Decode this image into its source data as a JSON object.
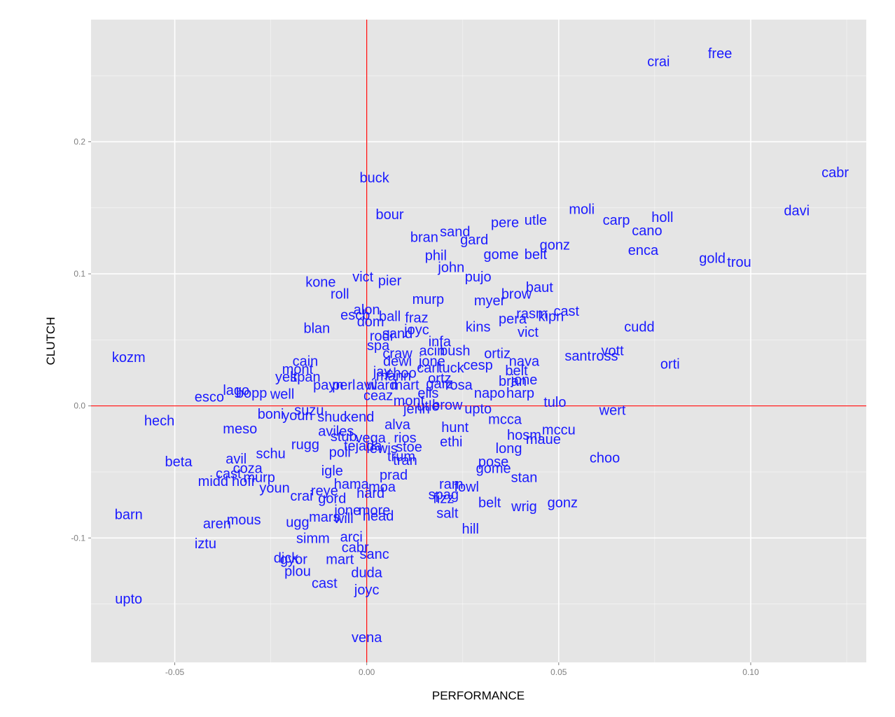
{
  "chart_data": {
    "type": "scatter",
    "xlabel": "PERFORMANCE",
    "ylabel": "CLUTCH",
    "xlim": [
      -0.0718,
      0.1301
    ],
    "ylim": [
      -0.1942,
      0.2925
    ],
    "x_ticks": [
      -0.05,
      0.0,
      0.05,
      0.1
    ],
    "x_tick_labels": [
      "-0.05",
      "0.00",
      "0.05",
      "0.10"
    ],
    "y_ticks": [
      -0.1,
      0.0,
      0.1,
      0.2
    ],
    "y_tick_labels": [
      "-0.1",
      "0.0",
      "0.1",
      "0.2"
    ],
    "grid": true,
    "reference_lines": {
      "x": 0.0,
      "y": 0.0,
      "color": "#ff0000"
    },
    "colors": {
      "panel_background": "#e5e5e5",
      "grid": "#ffffff",
      "label_text": "#1a1aff",
      "tick_text": "#7f7f7f"
    },
    "points": [
      {
        "label": "free",
        "x": 0.092,
        "y": 0.267
      },
      {
        "label": "crai",
        "x": 0.076,
        "y": 0.261
      },
      {
        "label": "cabr",
        "x": 0.122,
        "y": 0.177
      },
      {
        "label": "davi",
        "x": 0.112,
        "y": 0.148
      },
      {
        "label": "buck",
        "x": 0.002,
        "y": 0.173
      },
      {
        "label": "moli",
        "x": 0.056,
        "y": 0.149
      },
      {
        "label": "holl",
        "x": 0.077,
        "y": 0.143
      },
      {
        "label": "carp",
        "x": 0.065,
        "y": 0.141
      },
      {
        "label": "cano",
        "x": 0.073,
        "y": 0.133
      },
      {
        "label": "bour",
        "x": 0.006,
        "y": 0.145
      },
      {
        "label": "utle",
        "x": 0.044,
        "y": 0.141
      },
      {
        "label": "pere",
        "x": 0.036,
        "y": 0.139
      },
      {
        "label": "sand",
        "x": 0.023,
        "y": 0.132
      },
      {
        "label": "gard",
        "x": 0.028,
        "y": 0.126
      },
      {
        "label": "bran",
        "x": 0.015,
        "y": 0.128
      },
      {
        "label": "gonz",
        "x": 0.049,
        "y": 0.122
      },
      {
        "label": "enca",
        "x": 0.072,
        "y": 0.118
      },
      {
        "label": "gome",
        "x": 0.035,
        "y": 0.115
      },
      {
        "label": "belt",
        "x": 0.044,
        "y": 0.115
      },
      {
        "label": "gold",
        "x": 0.09,
        "y": 0.112
      },
      {
        "label": "trou",
        "x": 0.097,
        "y": 0.109
      },
      {
        "label": "phil",
        "x": 0.018,
        "y": 0.114
      },
      {
        "label": "john",
        "x": 0.022,
        "y": 0.105
      },
      {
        "label": "pujo",
        "x": 0.029,
        "y": 0.098
      },
      {
        "label": "vict",
        "x": -0.001,
        "y": 0.098
      },
      {
        "label": "pier",
        "x": 0.006,
        "y": 0.095
      },
      {
        "label": "kone",
        "x": -0.012,
        "y": 0.094
      },
      {
        "label": "baut",
        "x": 0.045,
        "y": 0.09
      },
      {
        "label": "roll",
        "x": -0.007,
        "y": 0.085
      },
      {
        "label": "brow",
        "x": 0.039,
        "y": 0.085
      },
      {
        "label": "murp",
        "x": 0.016,
        "y": 0.081
      },
      {
        "label": "myer",
        "x": 0.032,
        "y": 0.08
      },
      {
        "label": "alon",
        "x": 0.0,
        "y": 0.073
      },
      {
        "label": "escb",
        "x": -0.003,
        "y": 0.069
      },
      {
        "label": "ball",
        "x": 0.006,
        "y": 0.068
      },
      {
        "label": "fraz",
        "x": 0.013,
        "y": 0.067
      },
      {
        "label": "dom",
        "x": 0.001,
        "y": 0.064
      },
      {
        "label": "rasm",
        "x": 0.043,
        "y": 0.07
      },
      {
        "label": "kipn",
        "x": 0.048,
        "y": 0.068
      },
      {
        "label": "cast",
        "x": 0.052,
        "y": 0.072
      },
      {
        "label": "pera",
        "x": 0.038,
        "y": 0.066
      },
      {
        "label": "blan",
        "x": -0.013,
        "y": 0.059
      },
      {
        "label": "kins",
        "x": 0.029,
        "y": 0.06
      },
      {
        "label": "cudd",
        "x": 0.071,
        "y": 0.06
      },
      {
        "label": "vict",
        "x": 0.042,
        "y": 0.056
      },
      {
        "label": "joyc",
        "x": 0.013,
        "y": 0.058
      },
      {
        "label": "rodr",
        "x": 0.004,
        "y": 0.053
      },
      {
        "label": "sand",
        "x": 0.008,
        "y": 0.055
      },
      {
        "label": "spa",
        "x": 0.003,
        "y": 0.046
      },
      {
        "label": "infa",
        "x": 0.019,
        "y": 0.049
      },
      {
        "label": "craw",
        "x": 0.008,
        "y": 0.04
      },
      {
        "label": "acin",
        "x": 0.017,
        "y": 0.042
      },
      {
        "label": "bush",
        "x": 0.023,
        "y": 0.042
      },
      {
        "label": "ortiz",
        "x": 0.034,
        "y": 0.04
      },
      {
        "label": "kozm",
        "x": -0.062,
        "y": 0.037
      },
      {
        "label": "cain",
        "x": -0.016,
        "y": 0.034
      },
      {
        "label": "dewi",
        "x": 0.008,
        "y": 0.034
      },
      {
        "label": "jone",
        "x": 0.017,
        "y": 0.034
      },
      {
        "label": "orti",
        "x": 0.079,
        "y": 0.032
      },
      {
        "label": "sant",
        "x": 0.055,
        "y": 0.038
      },
      {
        "label": "vott",
        "x": 0.064,
        "y": 0.042
      },
      {
        "label": "ross",
        "x": 0.062,
        "y": 0.038
      },
      {
        "label": "nava",
        "x": 0.041,
        "y": 0.034
      },
      {
        "label": "cesp",
        "x": 0.029,
        "y": 0.031
      },
      {
        "label": "carl",
        "x": 0.016,
        "y": 0.029
      },
      {
        "label": "tuck",
        "x": 0.022,
        "y": 0.029
      },
      {
        "label": "mont",
        "x": -0.018,
        "y": 0.028
      },
      {
        "label": "jay",
        "x": 0.004,
        "y": 0.026
      },
      {
        "label": "choo",
        "x": 0.009,
        "y": 0.025
      },
      {
        "label": "belt",
        "x": 0.039,
        "y": 0.027
      },
      {
        "label": "yelt",
        "x": -0.021,
        "y": 0.022
      },
      {
        "label": "span",
        "x": -0.016,
        "y": 0.022
      },
      {
        "label": "mann",
        "x": 0.007,
        "y": 0.023
      },
      {
        "label": "ortz",
        "x": 0.019,
        "y": 0.021
      },
      {
        "label": "bran",
        "x": 0.038,
        "y": 0.019
      },
      {
        "label": "jone",
        "x": 0.041,
        "y": 0.02
      },
      {
        "label": "payn",
        "x": -0.01,
        "y": 0.016
      },
      {
        "label": "perl",
        "x": -0.006,
        "y": 0.016
      },
      {
        "label": "avil",
        "x": 0.0,
        "y": 0.016
      },
      {
        "label": "ward",
        "x": 0.004,
        "y": 0.016
      },
      {
        "label": "mart",
        "x": 0.01,
        "y": 0.016
      },
      {
        "label": "garz",
        "x": 0.019,
        "y": 0.017
      },
      {
        "label": "rosa",
        "x": 0.024,
        "y": 0.016
      },
      {
        "label": "lago",
        "x": -0.034,
        "y": 0.012
      },
      {
        "label": "bopp",
        "x": -0.03,
        "y": 0.01
      },
      {
        "label": "well",
        "x": -0.022,
        "y": 0.009
      },
      {
        "label": "esco",
        "x": -0.041,
        "y": 0.007
      },
      {
        "label": "ceaz",
        "x": 0.003,
        "y": 0.008
      },
      {
        "label": "ells",
        "x": 0.016,
        "y": 0.01
      },
      {
        "label": "napo",
        "x": 0.032,
        "y": 0.01
      },
      {
        "label": "harp",
        "x": 0.04,
        "y": 0.01
      },
      {
        "label": "tulo",
        "x": 0.049,
        "y": 0.003
      },
      {
        "label": "mont",
        "x": 0.011,
        "y": 0.004
      },
      {
        "label": "jenn",
        "x": 0.013,
        "y": -0.002
      },
      {
        "label": "utle",
        "x": 0.016,
        "y": 0.0
      },
      {
        "label": "brow",
        "x": 0.021,
        "y": 0.001
      },
      {
        "label": "upto",
        "x": 0.029,
        "y": -0.002
      },
      {
        "label": "wert",
        "x": 0.064,
        "y": -0.003
      },
      {
        "label": "suzu",
        "x": -0.015,
        "y": -0.003
      },
      {
        "label": "boni",
        "x": -0.025,
        "y": -0.006
      },
      {
        "label": "youn",
        "x": -0.018,
        "y": -0.007
      },
      {
        "label": "shuc",
        "x": -0.009,
        "y": -0.008
      },
      {
        "label": "kend",
        "x": -0.002,
        "y": -0.008
      },
      {
        "label": "hech",
        "x": -0.054,
        "y": -0.011
      },
      {
        "label": "mcca",
        "x": 0.036,
        "y": -0.01
      },
      {
        "label": "alva",
        "x": 0.008,
        "y": -0.014
      },
      {
        "label": "hunt",
        "x": 0.023,
        "y": -0.016
      },
      {
        "label": "meso",
        "x": -0.033,
        "y": -0.017
      },
      {
        "label": "aviles",
        "x": -0.008,
        "y": -0.019
      },
      {
        "label": "mccu",
        "x": 0.05,
        "y": -0.018
      },
      {
        "label": "hosm",
        "x": 0.041,
        "y": -0.022
      },
      {
        "label": "maue",
        "x": 0.046,
        "y": -0.025
      },
      {
        "label": "stub",
        "x": -0.006,
        "y": -0.023
      },
      {
        "label": "vega",
        "x": 0.001,
        "y": -0.024
      },
      {
        "label": "rios",
        "x": 0.01,
        "y": -0.024
      },
      {
        "label": "ethi",
        "x": 0.022,
        "y": -0.027
      },
      {
        "label": "rugg",
        "x": -0.016,
        "y": -0.029
      },
      {
        "label": "tejada",
        "x": -0.001,
        "y": -0.03
      },
      {
        "label": "lewis",
        "x": 0.004,
        "y": -0.032
      },
      {
        "label": "stoe",
        "x": 0.011,
        "y": -0.031
      },
      {
        "label": "long",
        "x": 0.037,
        "y": -0.032
      },
      {
        "label": "poll",
        "x": -0.007,
        "y": -0.035
      },
      {
        "label": "trum",
        "x": 0.009,
        "y": -0.038
      },
      {
        "label": "choo",
        "x": 0.062,
        "y": -0.039
      },
      {
        "label": "schu",
        "x": -0.025,
        "y": -0.036
      },
      {
        "label": "beta",
        "x": -0.049,
        "y": -0.042
      },
      {
        "label": "avil",
        "x": -0.034,
        "y": -0.04
      },
      {
        "label": "tran",
        "x": 0.01,
        "y": -0.041
      },
      {
        "label": "pose",
        "x": 0.033,
        "y": -0.042
      },
      {
        "label": "gome",
        "x": 0.033,
        "y": -0.047
      },
      {
        "label": "coza",
        "x": -0.031,
        "y": -0.047
      },
      {
        "label": "igle",
        "x": -0.009,
        "y": -0.049
      },
      {
        "label": "prad",
        "x": 0.007,
        "y": -0.052
      },
      {
        "label": "stan",
        "x": 0.041,
        "y": -0.054
      },
      {
        "label": "cast",
        "x": -0.036,
        "y": -0.051
      },
      {
        "label": "murp",
        "x": -0.028,
        "y": -0.054
      },
      {
        "label": "midd",
        "x": -0.04,
        "y": -0.057
      },
      {
        "label": "hofr",
        "x": -0.032,
        "y": -0.057
      },
      {
        "label": "ram",
        "x": 0.022,
        "y": -0.059
      },
      {
        "label": "fowl",
        "x": 0.026,
        "y": -0.061
      },
      {
        "label": "hama",
        "x": -0.004,
        "y": -0.059
      },
      {
        "label": "moa",
        "x": 0.004,
        "y": -0.061
      },
      {
        "label": "youn",
        "x": -0.024,
        "y": -0.062
      },
      {
        "label": "reye",
        "x": -0.011,
        "y": -0.064
      },
      {
        "label": "hard",
        "x": 0.001,
        "y": -0.066
      },
      {
        "label": "crai",
        "x": -0.017,
        "y": -0.068
      },
      {
        "label": "spag",
        "x": 0.02,
        "y": -0.067
      },
      {
        "label": "fizz",
        "x": 0.02,
        "y": -0.07
      },
      {
        "label": "gord",
        "x": -0.009,
        "y": -0.07
      },
      {
        "label": "belt",
        "x": 0.032,
        "y": -0.073
      },
      {
        "label": "wrig",
        "x": 0.041,
        "y": -0.076
      },
      {
        "label": "gonz",
        "x": 0.051,
        "y": -0.073
      },
      {
        "label": "jone",
        "x": -0.005,
        "y": -0.079
      },
      {
        "label": "more",
        "x": 0.002,
        "y": -0.079
      },
      {
        "label": "salt",
        "x": 0.021,
        "y": -0.081
      },
      {
        "label": "barn",
        "x": -0.062,
        "y": -0.082
      },
      {
        "label": "mars",
        "x": -0.011,
        "y": -0.084
      },
      {
        "label": "will",
        "x": -0.006,
        "y": -0.085
      },
      {
        "label": "head",
        "x": 0.003,
        "y": -0.083
      },
      {
        "label": "mous",
        "x": -0.032,
        "y": -0.086
      },
      {
        "label": "aren",
        "x": -0.039,
        "y": -0.089
      },
      {
        "label": "ugg",
        "x": -0.018,
        "y": -0.088
      },
      {
        "label": "hill",
        "x": 0.027,
        "y": -0.093
      },
      {
        "label": "simm",
        "x": -0.014,
        "y": -0.1
      },
      {
        "label": "arci",
        "x": -0.004,
        "y": -0.099
      },
      {
        "label": "iztu",
        "x": -0.042,
        "y": -0.104
      },
      {
        "label": "cabr",
        "x": -0.003,
        "y": -0.107
      },
      {
        "label": "sanc",
        "x": 0.002,
        "y": -0.112
      },
      {
        "label": "dick",
        "x": -0.021,
        "y": -0.115
      },
      {
        "label": "gyor",
        "x": -0.019,
        "y": -0.116
      },
      {
        "label": "mart",
        "x": -0.007,
        "y": -0.116
      },
      {
        "label": "plou",
        "x": -0.018,
        "y": -0.125
      },
      {
        "label": "duda",
        "x": 0.0,
        "y": -0.126
      },
      {
        "label": "cast",
        "x": -0.011,
        "y": -0.134
      },
      {
        "label": "joyc",
        "x": 0.0,
        "y": -0.139
      },
      {
        "label": "upto",
        "x": -0.062,
        "y": -0.146
      },
      {
        "label": "vena",
        "x": 0.0,
        "y": -0.175
      }
    ]
  }
}
